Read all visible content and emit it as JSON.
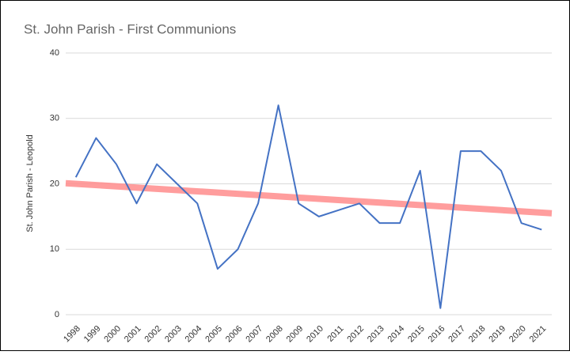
{
  "chart_data": {
    "type": "line",
    "title": "St. John Parish - First Communions",
    "ylabel": "St. John Parish - Leopold",
    "categories": [
      "1998",
      "1999",
      "2000",
      "2001",
      "2002",
      "2003",
      "2004",
      "2005",
      "2006",
      "2007",
      "2008",
      "2009",
      "2010",
      "2011",
      "2012",
      "2013",
      "2014",
      "2015",
      "2016",
      "2017",
      "2018",
      "2019",
      "2020",
      "2021"
    ],
    "series": [
      {
        "color": "#4472c4",
        "values": [
          21,
          27,
          23,
          17,
          23,
          20,
          17,
          7,
          10,
          17,
          32,
          17,
          15,
          16,
          17,
          14,
          14,
          22,
          1,
          25,
          25,
          22,
          14,
          13
        ]
      }
    ],
    "trendline": {
      "color": "#ff8c8c",
      "values": [
        20,
        15.6
      ]
    },
    "ylim": [
      0,
      40
    ],
    "yticks": [
      0,
      10,
      20,
      30,
      40
    ],
    "grid": true
  }
}
